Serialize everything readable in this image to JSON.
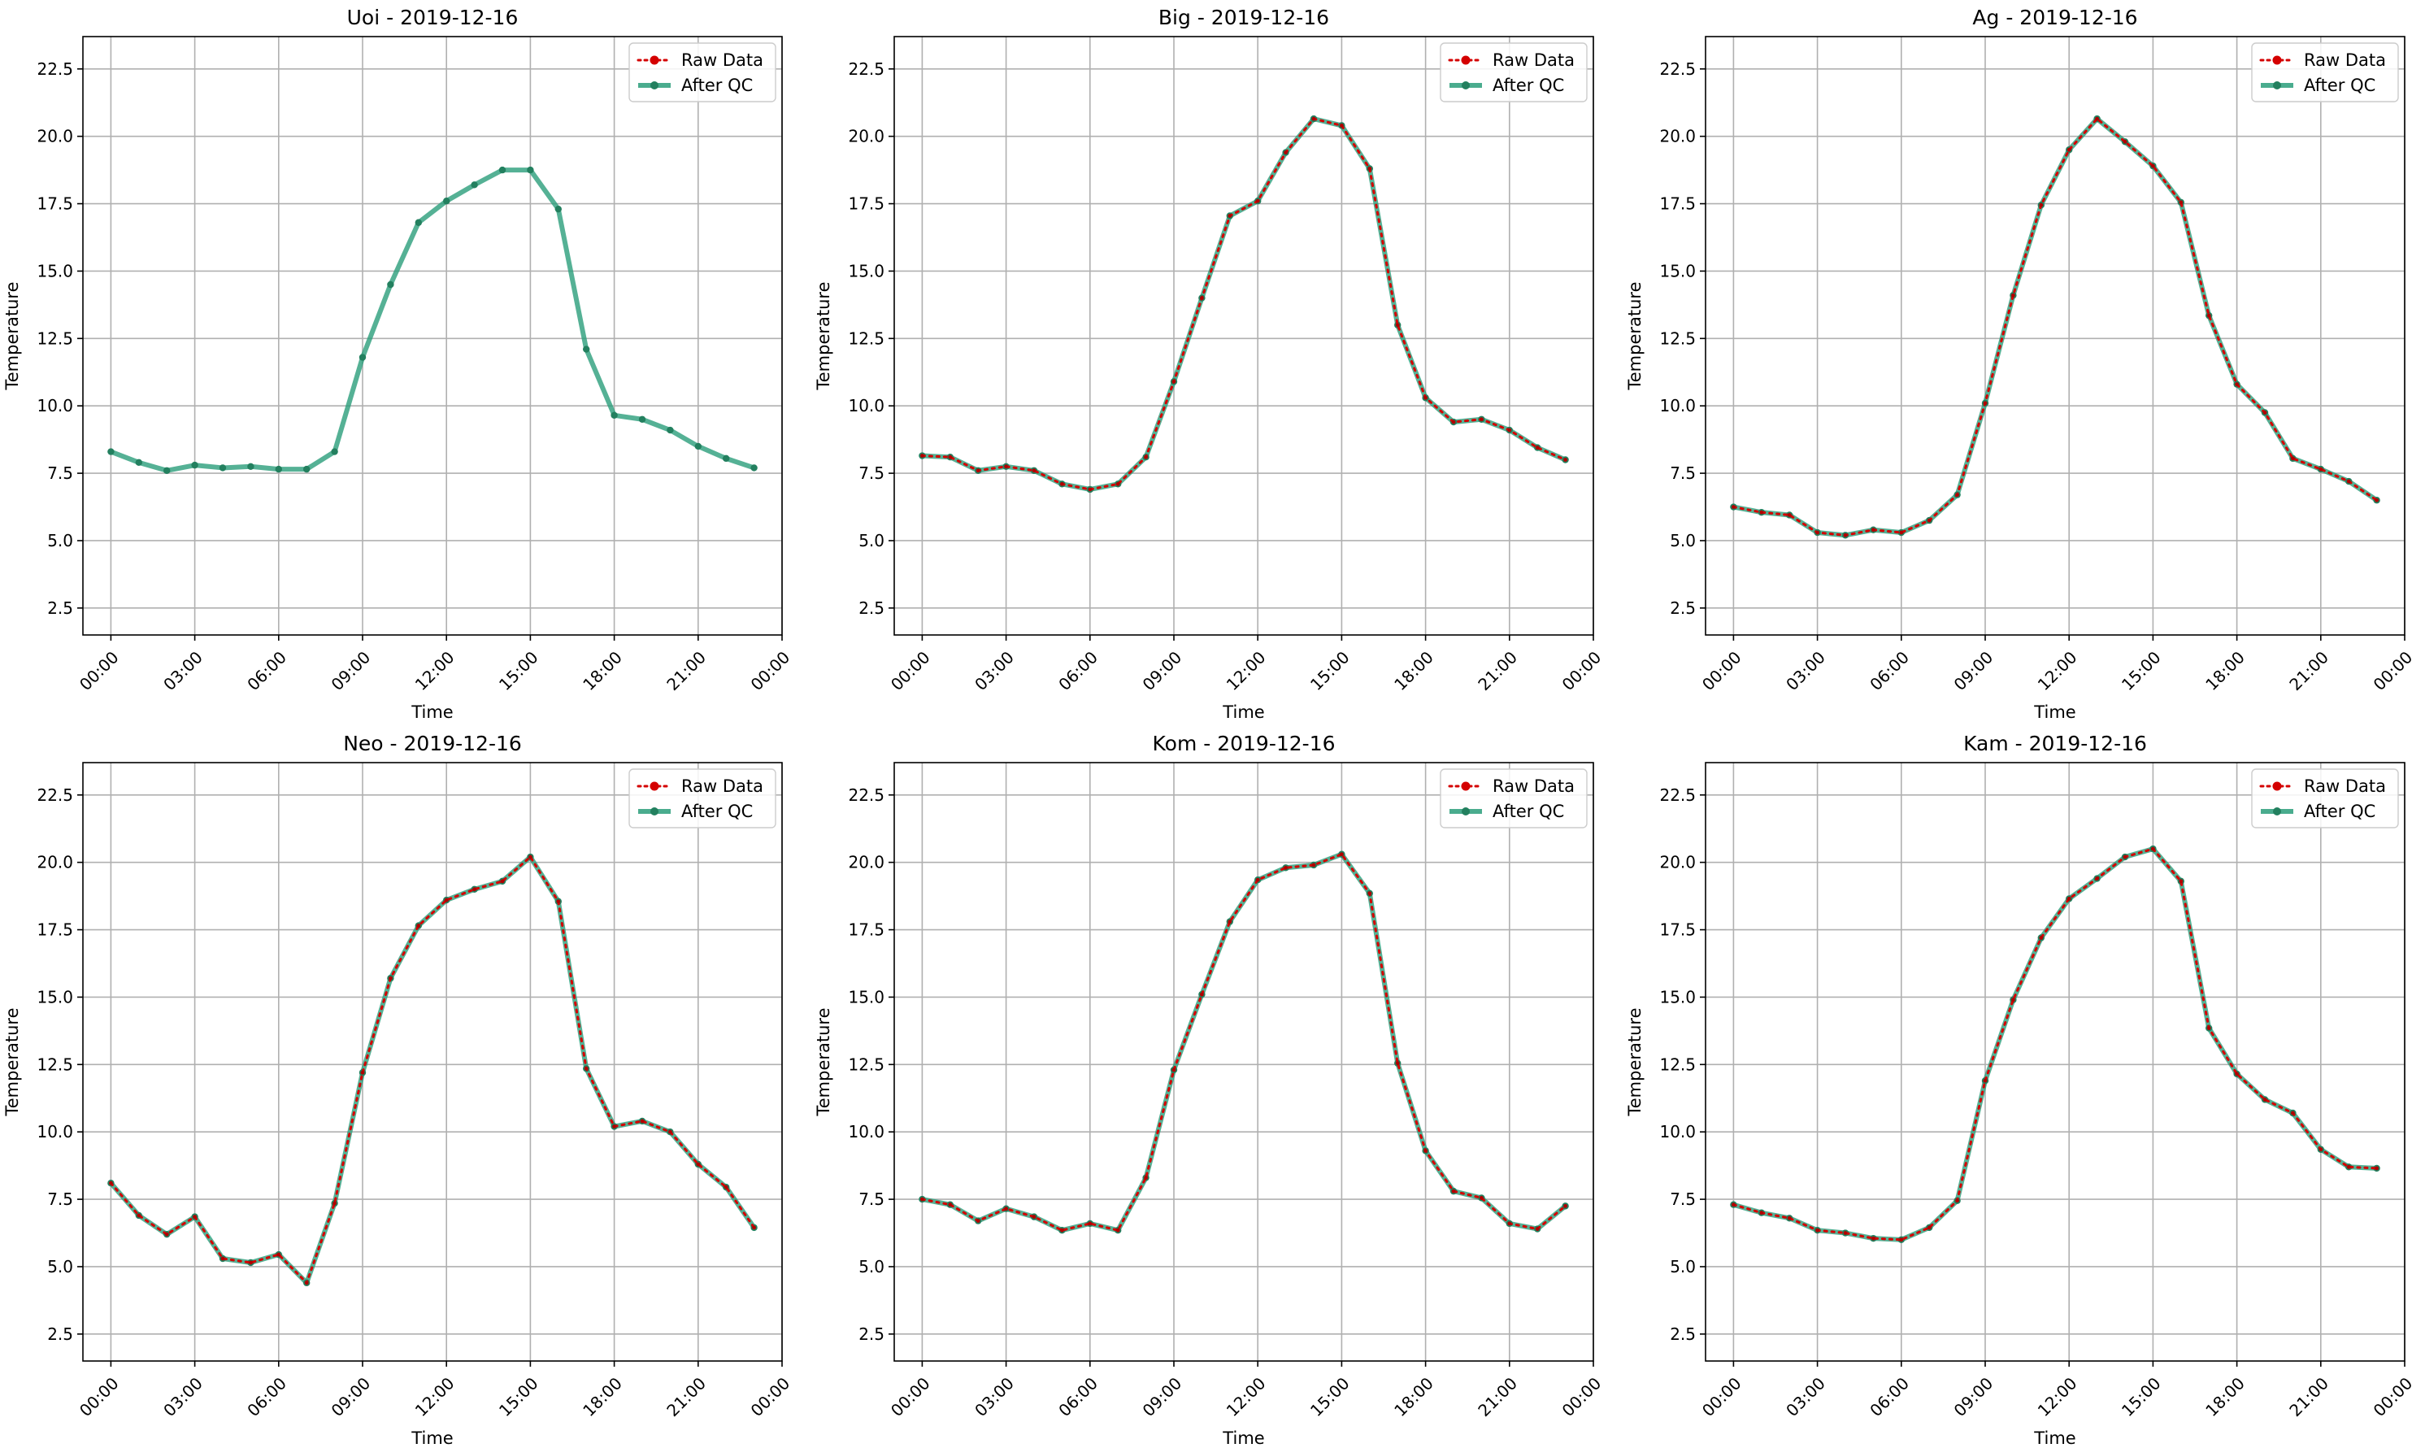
{
  "chart_data": [
    {
      "type": "line",
      "title": "Uoi - 2019-12-16",
      "xlabel": "Time",
      "ylabel": "Temperature",
      "ylim": [
        1.5,
        23.7
      ],
      "xlim": [
        -1,
        24
      ],
      "yticks": [
        "2.5",
        "5.0",
        "7.5",
        "10.0",
        "12.5",
        "15.0",
        "17.5",
        "20.0",
        "22.5"
      ],
      "xticks": [
        "00:00",
        "03:00",
        "06:00",
        "09:00",
        "12:00",
        "15:00",
        "18:00",
        "21:00",
        "00:00"
      ],
      "grid": true,
      "legend_position": "upper right",
      "legend": [
        "Raw Data",
        "After QC"
      ],
      "x": [
        "00:00",
        "01:00",
        "02:00",
        "03:00",
        "04:00",
        "05:00",
        "06:00",
        "07:00",
        "08:00",
        "09:00",
        "10:00",
        "11:00",
        "12:00",
        "13:00",
        "14:00",
        "15:00",
        "16:00",
        "17:00",
        "18:00",
        "19:00",
        "20:00",
        "21:00",
        "22:00",
        "23:00"
      ],
      "series": [
        {
          "name": "Raw Data",
          "values": [
            null,
            null,
            null,
            null,
            null,
            null,
            null,
            null,
            null,
            null,
            null,
            null,
            null,
            null,
            null,
            null,
            null,
            null,
            null,
            null,
            null,
            null,
            null,
            null
          ]
        },
        {
          "name": "After QC",
          "values": [
            8.3,
            7.9,
            7.6,
            7.8,
            7.7,
            7.75,
            7.65,
            7.65,
            8.3,
            11.8,
            14.5,
            16.8,
            17.6,
            18.2,
            18.75,
            18.75,
            17.3,
            12.1,
            9.65,
            9.5,
            9.1,
            8.5,
            8.05,
            7.7
          ]
        }
      ]
    },
    {
      "type": "line",
      "title": "Big - 2019-12-16",
      "xlabel": "Time",
      "ylabel": "Temperature",
      "ylim": [
        1.5,
        23.7
      ],
      "xlim": [
        -1,
        24
      ],
      "yticks": [
        "2.5",
        "5.0",
        "7.5",
        "10.0",
        "12.5",
        "15.0",
        "17.5",
        "20.0",
        "22.5"
      ],
      "xticks": [
        "00:00",
        "03:00",
        "06:00",
        "09:00",
        "12:00",
        "15:00",
        "18:00",
        "21:00",
        "00:00"
      ],
      "grid": true,
      "legend_position": "upper right",
      "legend": [
        "Raw Data",
        "After QC"
      ],
      "x": [
        "00:00",
        "01:00",
        "02:00",
        "03:00",
        "04:00",
        "05:00",
        "06:00",
        "07:00",
        "08:00",
        "09:00",
        "10:00",
        "11:00",
        "12:00",
        "13:00",
        "14:00",
        "15:00",
        "16:00",
        "17:00",
        "18:00",
        "19:00",
        "20:00",
        "21:00",
        "22:00",
        "23:00"
      ],
      "series": [
        {
          "name": "Raw Data",
          "values": [
            8.15,
            8.1,
            7.6,
            7.75,
            7.6,
            7.1,
            6.9,
            7.1,
            8.1,
            10.9,
            14.0,
            17.05,
            17.6,
            19.4,
            20.65,
            20.4,
            18.8,
            13.0,
            10.3,
            9.4,
            9.5,
            9.1,
            8.45,
            8.0
          ]
        },
        {
          "name": "After QC",
          "values": [
            8.15,
            8.1,
            7.6,
            7.75,
            7.6,
            7.1,
            6.9,
            7.1,
            8.1,
            10.9,
            14.0,
            17.05,
            17.6,
            19.4,
            20.65,
            20.4,
            18.8,
            13.0,
            10.3,
            9.4,
            9.5,
            9.1,
            8.45,
            8.0
          ]
        }
      ]
    },
    {
      "type": "line",
      "title": "Ag - 2019-12-16",
      "xlabel": "Time",
      "ylabel": "Temperature",
      "ylim": [
        1.5,
        23.7
      ],
      "xlim": [
        -1,
        24
      ],
      "yticks": [
        "2.5",
        "5.0",
        "7.5",
        "10.0",
        "12.5",
        "15.0",
        "17.5",
        "20.0",
        "22.5"
      ],
      "xticks": [
        "00:00",
        "03:00",
        "06:00",
        "09:00",
        "12:00",
        "15:00",
        "18:00",
        "21:00",
        "00:00"
      ],
      "grid": true,
      "legend_position": "upper right",
      "legend": [
        "Raw Data",
        "After QC"
      ],
      "x": [
        "00:00",
        "01:00",
        "02:00",
        "03:00",
        "04:00",
        "05:00",
        "06:00",
        "07:00",
        "08:00",
        "09:00",
        "10:00",
        "11:00",
        "12:00",
        "13:00",
        "14:00",
        "15:00",
        "16:00",
        "17:00",
        "18:00",
        "19:00",
        "20:00",
        "21:00",
        "22:00",
        "23:00"
      ],
      "series": [
        {
          "name": "Raw Data",
          "values": [
            6.25,
            6.05,
            5.95,
            5.3,
            5.2,
            5.4,
            5.3,
            5.75,
            6.7,
            10.1,
            14.1,
            17.45,
            19.5,
            20.65,
            19.8,
            18.9,
            17.55,
            13.35,
            10.8,
            9.75,
            8.05,
            7.65,
            7.2,
            6.5
          ]
        },
        {
          "name": "After QC",
          "values": [
            6.25,
            6.05,
            5.95,
            5.3,
            5.2,
            5.4,
            5.3,
            5.75,
            6.7,
            10.1,
            14.1,
            17.45,
            19.5,
            20.65,
            19.8,
            18.9,
            17.55,
            13.35,
            10.8,
            9.75,
            8.05,
            7.65,
            7.2,
            6.5
          ]
        }
      ]
    },
    {
      "type": "line",
      "title": "Neo - 2019-12-16",
      "xlabel": "Time",
      "ylabel": "Temperature",
      "ylim": [
        1.5,
        23.7
      ],
      "xlim": [
        -1,
        24
      ],
      "yticks": [
        "2.5",
        "5.0",
        "7.5",
        "10.0",
        "12.5",
        "15.0",
        "17.5",
        "20.0",
        "22.5"
      ],
      "xticks": [
        "00:00",
        "03:00",
        "06:00",
        "09:00",
        "12:00",
        "15:00",
        "18:00",
        "21:00",
        "00:00"
      ],
      "grid": true,
      "legend_position": "upper right",
      "legend": [
        "Raw Data",
        "After QC"
      ],
      "x": [
        "00:00",
        "01:00",
        "02:00",
        "03:00",
        "04:00",
        "05:00",
        "06:00",
        "07:00",
        "08:00",
        "09:00",
        "10:00",
        "11:00",
        "12:00",
        "13:00",
        "14:00",
        "15:00",
        "16:00",
        "17:00",
        "18:00",
        "19:00",
        "20:00",
        "21:00",
        "22:00",
        "23:00"
      ],
      "series": [
        {
          "name": "Raw Data",
          "values": [
            8.1,
            6.9,
            6.2,
            6.85,
            5.3,
            5.15,
            5.45,
            4.4,
            7.35,
            12.2,
            15.7,
            17.65,
            18.6,
            19.0,
            19.3,
            20.2,
            18.55,
            12.35,
            10.2,
            10.4,
            10.0,
            8.8,
            7.95,
            6.45
          ]
        },
        {
          "name": "After QC",
          "values": [
            8.1,
            6.9,
            6.2,
            6.85,
            5.3,
            5.15,
            5.45,
            4.4,
            7.35,
            12.2,
            15.7,
            17.65,
            18.6,
            19.0,
            19.3,
            20.2,
            18.55,
            12.35,
            10.2,
            10.4,
            10.0,
            8.8,
            7.95,
            6.45
          ]
        }
      ]
    },
    {
      "type": "line",
      "title": "Kom - 2019-12-16",
      "xlabel": "Time",
      "ylabel": "Temperature",
      "ylim": [
        1.5,
        23.7
      ],
      "xlim": [
        -1,
        24
      ],
      "yticks": [
        "2.5",
        "5.0",
        "7.5",
        "10.0",
        "12.5",
        "15.0",
        "17.5",
        "20.0",
        "22.5"
      ],
      "xticks": [
        "00:00",
        "03:00",
        "06:00",
        "09:00",
        "12:00",
        "15:00",
        "18:00",
        "21:00",
        "00:00"
      ],
      "grid": true,
      "legend_position": "upper right",
      "legend": [
        "Raw Data",
        "After QC"
      ],
      "x": [
        "00:00",
        "01:00",
        "02:00",
        "03:00",
        "04:00",
        "05:00",
        "06:00",
        "07:00",
        "08:00",
        "09:00",
        "10:00",
        "11:00",
        "12:00",
        "13:00",
        "14:00",
        "15:00",
        "16:00",
        "17:00",
        "18:00",
        "19:00",
        "20:00",
        "21:00",
        "22:00",
        "23:00"
      ],
      "series": [
        {
          "name": "Raw Data",
          "values": [
            7.5,
            7.3,
            6.7,
            7.15,
            6.85,
            6.35,
            6.6,
            6.35,
            8.3,
            12.3,
            15.1,
            17.8,
            19.35,
            19.8,
            19.9,
            20.3,
            18.85,
            12.55,
            9.3,
            7.8,
            7.55,
            6.6,
            6.4,
            7.25
          ]
        },
        {
          "name": "After QC",
          "values": [
            7.5,
            7.3,
            6.7,
            7.15,
            6.85,
            6.35,
            6.6,
            6.35,
            8.3,
            12.3,
            15.1,
            17.8,
            19.35,
            19.8,
            19.9,
            20.3,
            18.85,
            12.55,
            9.3,
            7.8,
            7.55,
            6.6,
            6.4,
            7.25
          ]
        }
      ]
    },
    {
      "type": "line",
      "title": "Kam - 2019-12-16",
      "xlabel": "Time",
      "ylabel": "Temperature",
      "ylim": [
        1.5,
        23.7
      ],
      "xlim": [
        -1,
        24
      ],
      "yticks": [
        "2.5",
        "5.0",
        "7.5",
        "10.0",
        "12.5",
        "15.0",
        "17.5",
        "20.0",
        "22.5"
      ],
      "xticks": [
        "00:00",
        "03:00",
        "06:00",
        "09:00",
        "12:00",
        "15:00",
        "18:00",
        "21:00",
        "00:00"
      ],
      "grid": true,
      "legend_position": "upper right",
      "legend": [
        "Raw Data",
        "After QC"
      ],
      "x": [
        "00:00",
        "01:00",
        "02:00",
        "03:00",
        "04:00",
        "05:00",
        "06:00",
        "07:00",
        "08:00",
        "09:00",
        "10:00",
        "11:00",
        "12:00",
        "13:00",
        "14:00",
        "15:00",
        "16:00",
        "17:00",
        "18:00",
        "19:00",
        "20:00",
        "21:00",
        "22:00",
        "23:00"
      ],
      "series": [
        {
          "name": "Raw Data",
          "values": [
            7.3,
            7.0,
            6.8,
            6.35,
            6.25,
            6.05,
            6.0,
            6.45,
            7.45,
            11.9,
            14.9,
            17.2,
            18.65,
            19.4,
            20.2,
            20.5,
            19.3,
            13.85,
            12.15,
            11.2,
            10.7,
            9.35,
            8.7,
            8.65
          ]
        },
        {
          "name": "After QC",
          "values": [
            7.3,
            7.0,
            6.8,
            6.35,
            6.25,
            6.05,
            6.0,
            6.45,
            7.45,
            11.9,
            14.9,
            17.2,
            18.65,
            19.4,
            20.2,
            20.5,
            19.3,
            13.85,
            12.15,
            11.2,
            10.7,
            9.35,
            8.7,
            8.65
          ]
        }
      ]
    }
  ],
  "colors": {
    "raw": "#d40000",
    "raw_point": "#b00000",
    "qc": "#2a9d7a",
    "qc_point": "#23805f",
    "grid": "#b0b0b0"
  }
}
